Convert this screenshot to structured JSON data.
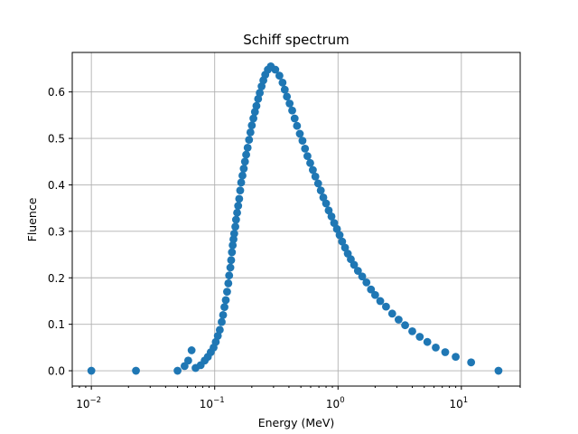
{
  "chart_data": {
    "type": "scatter",
    "title": "Schiff spectrum",
    "xlabel": "Energy (MeV)",
    "ylabel": "Fluence",
    "xscale": "log",
    "xlim": [
      0.007,
      30
    ],
    "ylim": [
      -0.033,
      0.685
    ],
    "grid": true,
    "marker_color": "#1f77b4",
    "x_ticks": [
      {
        "value": 0.01,
        "base": "10",
        "exp": "−2"
      },
      {
        "value": 0.1,
        "base": "10",
        "exp": "−1"
      },
      {
        "value": 1,
        "base": "10",
        "exp": "0"
      },
      {
        "value": 10,
        "base": "10",
        "exp": "1"
      }
    ],
    "y_ticks": [
      {
        "value": 0.0,
        "label": "0.0"
      },
      {
        "value": 0.1,
        "label": "0.1"
      },
      {
        "value": 0.2,
        "label": "0.2"
      },
      {
        "value": 0.3,
        "label": "0.3"
      },
      {
        "value": 0.4,
        "label": "0.4"
      },
      {
        "value": 0.5,
        "label": "0.5"
      },
      {
        "value": 0.6,
        "label": "0.6"
      }
    ],
    "series": [
      {
        "points": [
          [
            0.01,
            0.0
          ],
          [
            0.023,
            0.0
          ],
          [
            0.05,
            0.0
          ],
          [
            0.057,
            0.01
          ],
          [
            0.061,
            0.022
          ],
          [
            0.065,
            0.044
          ],
          [
            0.07,
            0.006
          ],
          [
            0.077,
            0.012
          ],
          [
            0.083,
            0.022
          ],
          [
            0.088,
            0.03
          ],
          [
            0.093,
            0.04
          ],
          [
            0.098,
            0.05
          ],
          [
            0.102,
            0.062
          ],
          [
            0.106,
            0.075
          ],
          [
            0.11,
            0.088
          ],
          [
            0.114,
            0.105
          ],
          [
            0.117,
            0.12
          ],
          [
            0.12,
            0.137
          ],
          [
            0.123,
            0.152
          ],
          [
            0.126,
            0.17
          ],
          [
            0.129,
            0.188
          ],
          [
            0.131,
            0.205
          ],
          [
            0.134,
            0.222
          ],
          [
            0.136,
            0.238
          ],
          [
            0.138,
            0.255
          ],
          [
            0.14,
            0.27
          ],
          [
            0.142,
            0.283
          ],
          [
            0.144,
            0.295
          ],
          [
            0.147,
            0.31
          ],
          [
            0.149,
            0.325
          ],
          [
            0.152,
            0.34
          ],
          [
            0.155,
            0.355
          ],
          [
            0.158,
            0.37
          ],
          [
            0.161,
            0.388
          ],
          [
            0.164,
            0.405
          ],
          [
            0.168,
            0.42
          ],
          [
            0.172,
            0.435
          ],
          [
            0.176,
            0.45
          ],
          [
            0.18,
            0.465
          ],
          [
            0.185,
            0.48
          ],
          [
            0.19,
            0.497
          ],
          [
            0.195,
            0.513
          ],
          [
            0.2,
            0.528
          ],
          [
            0.206,
            0.543
          ],
          [
            0.212,
            0.557
          ],
          [
            0.218,
            0.57
          ],
          [
            0.225,
            0.585
          ],
          [
            0.232,
            0.598
          ],
          [
            0.24,
            0.612
          ],
          [
            0.248,
            0.625
          ],
          [
            0.257,
            0.637
          ],
          [
            0.27,
            0.648
          ],
          [
            0.285,
            0.655
          ],
          [
            0.31,
            0.648
          ],
          [
            0.335,
            0.635
          ],
          [
            0.355,
            0.62
          ],
          [
            0.37,
            0.605
          ],
          [
            0.385,
            0.59
          ],
          [
            0.405,
            0.575
          ],
          [
            0.425,
            0.56
          ],
          [
            0.445,
            0.543
          ],
          [
            0.465,
            0.527
          ],
          [
            0.49,
            0.51
          ],
          [
            0.515,
            0.495
          ],
          [
            0.54,
            0.478
          ],
          [
            0.565,
            0.462
          ],
          [
            0.595,
            0.447
          ],
          [
            0.625,
            0.432
          ],
          [
            0.655,
            0.418
          ],
          [
            0.69,
            0.403
          ],
          [
            0.725,
            0.388
          ],
          [
            0.76,
            0.373
          ],
          [
            0.8,
            0.36
          ],
          [
            0.84,
            0.345
          ],
          [
            0.885,
            0.332
          ],
          [
            0.93,
            0.318
          ],
          [
            0.98,
            0.305
          ],
          [
            1.03,
            0.292
          ],
          [
            1.08,
            0.278
          ],
          [
            1.14,
            0.265
          ],
          [
            1.2,
            0.252
          ],
          [
            1.27,
            0.24
          ],
          [
            1.35,
            0.228
          ],
          [
            1.45,
            0.215
          ],
          [
            1.57,
            0.203
          ],
          [
            1.7,
            0.19
          ],
          [
            1.85,
            0.175
          ],
          [
            2.0,
            0.163
          ],
          [
            2.2,
            0.15
          ],
          [
            2.45,
            0.138
          ],
          [
            2.75,
            0.123
          ],
          [
            3.1,
            0.11
          ],
          [
            3.5,
            0.098
          ],
          [
            4.0,
            0.085
          ],
          [
            4.6,
            0.073
          ],
          [
            5.3,
            0.062
          ],
          [
            6.2,
            0.05
          ],
          [
            7.4,
            0.04
          ],
          [
            9.0,
            0.03
          ],
          [
            12.0,
            0.018
          ],
          [
            20.0,
            0.0
          ]
        ]
      }
    ]
  }
}
